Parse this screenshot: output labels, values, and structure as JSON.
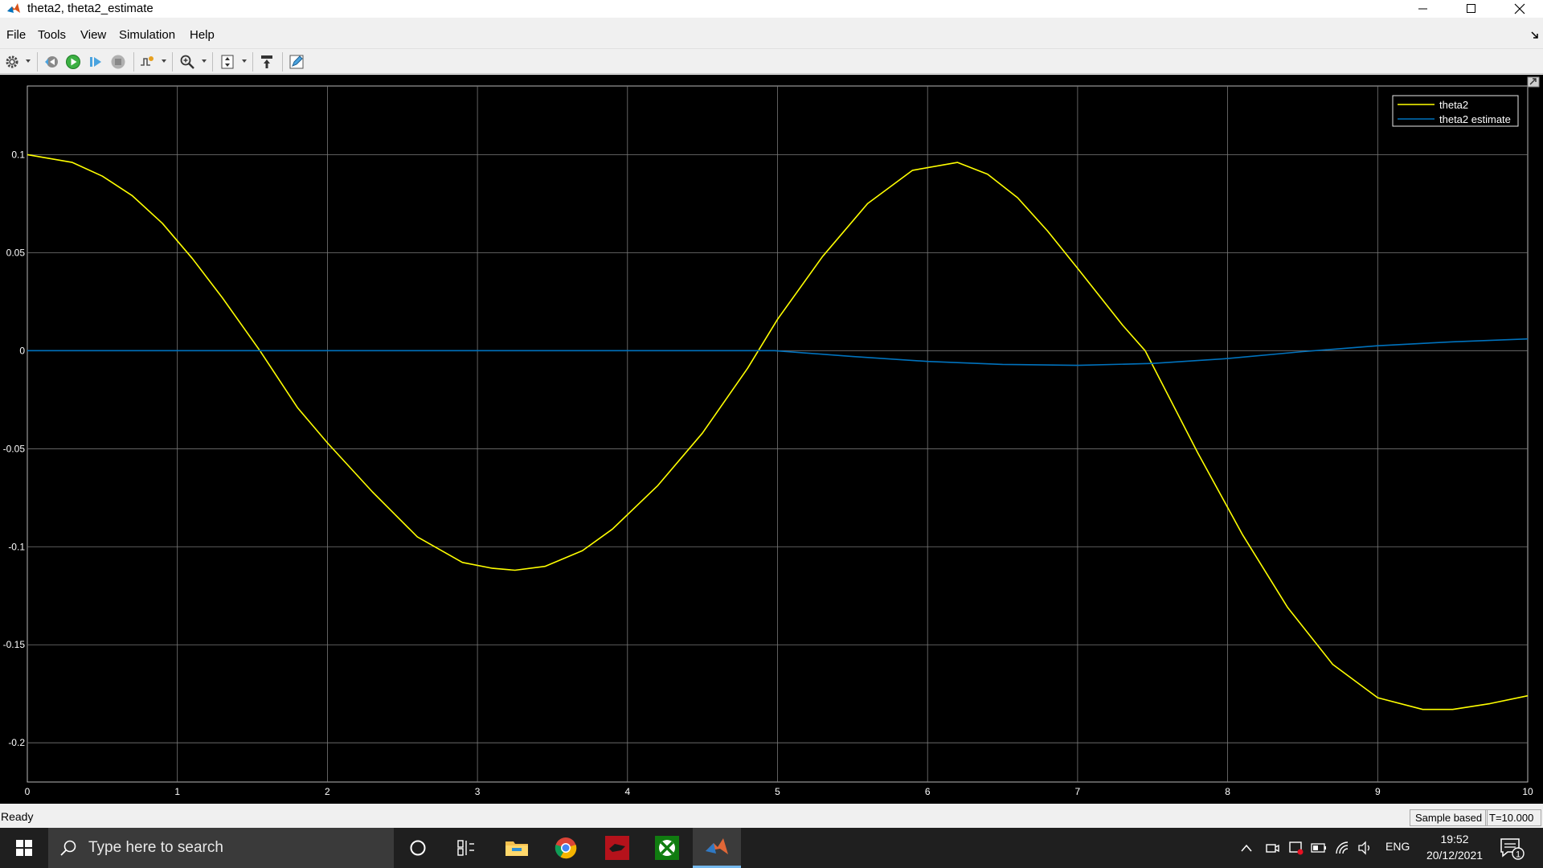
{
  "window": {
    "title": "theta2, theta2_estimate",
    "menu": [
      "File",
      "Tools",
      "View",
      "Simulation",
      "Help"
    ]
  },
  "toolbar": {
    "items": [
      "gear-icon",
      "step-back-icon",
      "run-icon",
      "step-forward-icon",
      "stop-icon",
      "triggers-icon",
      "zoom-icon",
      "autoscale-icon",
      "highlight-block-icon",
      "edit-style-icon"
    ]
  },
  "chart_data": {
    "type": "line",
    "title": "",
    "xlabel": "",
    "ylabel": "",
    "xlim": [
      0,
      10
    ],
    "ylim": [
      -0.22,
      0.135
    ],
    "xticks": [
      0,
      1,
      2,
      3,
      4,
      5,
      6,
      7,
      8,
      9,
      10
    ],
    "yticks": [
      -0.2,
      -0.15,
      -0.1,
      -0.05,
      0,
      0.05,
      0.1
    ],
    "xtick_labels": [
      "0",
      "1",
      "2",
      "3",
      "4",
      "5",
      "6",
      "7",
      "8",
      "9",
      "10"
    ],
    "ytick_labels": [
      "-0.2",
      "-0.15",
      "-0.1",
      "-0.05",
      "0",
      "0.05",
      "0.1"
    ],
    "grid": true,
    "legend_position": "top-right",
    "background": "#000000",
    "series": [
      {
        "name": "theta2",
        "color": "#ffff00",
        "x": [
          0,
          0.3,
          0.5,
          0.7,
          0.9,
          1.1,
          1.3,
          1.55,
          1.8,
          2.0,
          2.3,
          2.6,
          2.9,
          3.1,
          3.25,
          3.45,
          3.7,
          3.9,
          4.2,
          4.5,
          4.8,
          5.0,
          5.3,
          5.6,
          5.9,
          6.2,
          6.4,
          6.6,
          6.8,
          7.0,
          7.3,
          7.45,
          7.8,
          8.1,
          8.4,
          8.7,
          9.0,
          9.3,
          9.5,
          9.75,
          10.0
        ],
        "y": [
          0.1,
          0.096,
          0.089,
          0.079,
          0.065,
          0.047,
          0.027,
          0.0,
          -0.029,
          -0.047,
          -0.072,
          -0.095,
          -0.108,
          -0.111,
          -0.112,
          -0.11,
          -0.102,
          -0.091,
          -0.069,
          -0.042,
          -0.009,
          0.016,
          0.048,
          0.075,
          0.092,
          0.096,
          0.09,
          0.078,
          0.061,
          0.042,
          0.013,
          0.0,
          -0.052,
          -0.094,
          -0.131,
          -0.16,
          -0.177,
          -0.183,
          -0.183,
          -0.18,
          -0.176
        ]
      },
      {
        "name": "theta2 estimate",
        "color": "#0072bd",
        "x": [
          0,
          1,
          2,
          3,
          4,
          4.98,
          5.5,
          6.0,
          6.5,
          7.0,
          7.5,
          8.0,
          8.5,
          9.0,
          9.5,
          10.0
        ],
        "y": [
          0,
          0,
          0,
          0,
          0,
          0,
          -0.003,
          -0.0055,
          -0.007,
          -0.0075,
          -0.0065,
          -0.004,
          -0.0005,
          0.0025,
          0.0045,
          0.006
        ]
      }
    ]
  },
  "status": {
    "text": "Ready",
    "sample": "Sample based",
    "time": "T=10.000"
  },
  "taskbar": {
    "search_placeholder": "Type here to search",
    "apps": [
      "task-view-icon",
      "file-explorer-icon",
      "chrome-icon",
      "app-red-icon",
      "xbox-icon",
      "matlab-icon"
    ],
    "language": "ENG",
    "time": "19:52",
    "date": "20/12/2021",
    "notification_count": "1"
  }
}
